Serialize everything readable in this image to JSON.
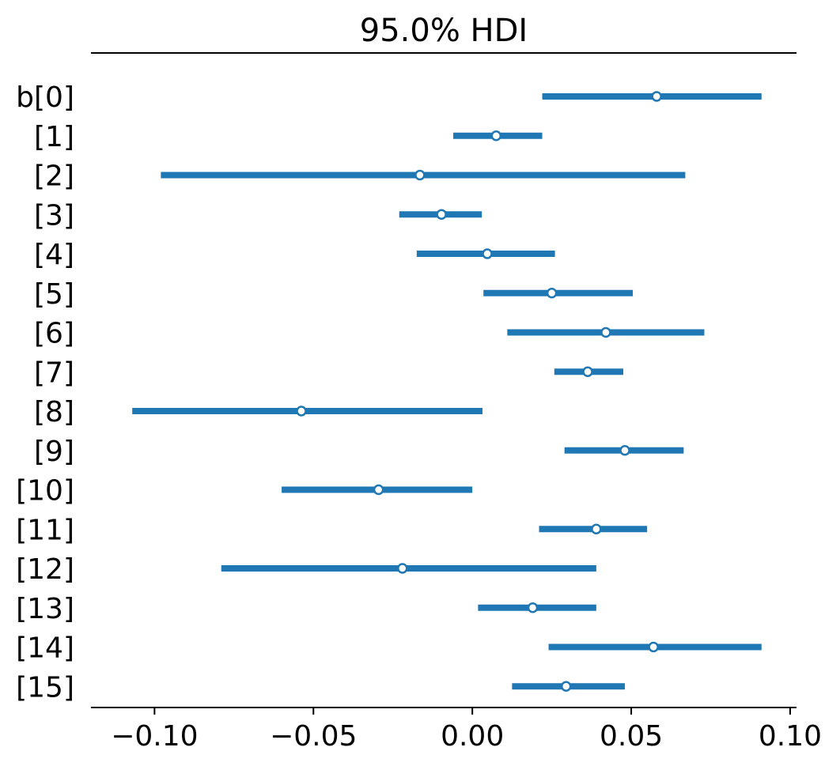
{
  "chart_data": {
    "type": "forest",
    "title": "95.0% HDI",
    "xlim": [
      -0.12,
      0.102
    ],
    "xticks": [
      -0.1,
      -0.05,
      0.0,
      0.05,
      0.1
    ],
    "xtick_labels": [
      "−0.10",
      "−0.05",
      "0.00",
      "0.05",
      "0.10"
    ],
    "series_color": "#1f77b4",
    "point_fill": "#ffffff",
    "grid": false,
    "rows": [
      {
        "label": "b[0]",
        "low": 0.022,
        "high": 0.091,
        "point": 0.058
      },
      {
        "label": "[1]",
        "low": -0.006,
        "high": 0.022,
        "point": 0.0075
      },
      {
        "label": "[2]",
        "low": -0.098,
        "high": 0.067,
        "point": -0.0165
      },
      {
        "label": "[3]",
        "low": -0.023,
        "high": 0.003,
        "point": -0.0097
      },
      {
        "label": "[4]",
        "low": -0.0175,
        "high": 0.026,
        "point": 0.0047
      },
      {
        "label": "[5]",
        "low": 0.0035,
        "high": 0.0505,
        "point": 0.025
      },
      {
        "label": "[6]",
        "low": 0.011,
        "high": 0.073,
        "point": 0.042
      },
      {
        "label": "[7]",
        "low": 0.0258,
        "high": 0.0475,
        "point": 0.0363
      },
      {
        "label": "[8]",
        "low": -0.107,
        "high": 0.0032,
        "point": -0.0538
      },
      {
        "label": "[9]",
        "low": 0.029,
        "high": 0.0665,
        "point": 0.048
      },
      {
        "label": "[10]",
        "low": -0.06,
        "high": 0.0,
        "point": -0.0295
      },
      {
        "label": "[11]",
        "low": 0.021,
        "high": 0.055,
        "point": 0.039
      },
      {
        "label": "[12]",
        "low": -0.079,
        "high": 0.039,
        "point": -0.022
      },
      {
        "label": "[13]",
        "low": 0.0018,
        "high": 0.039,
        "point": 0.019
      },
      {
        "label": "[14]",
        "low": 0.024,
        "high": 0.091,
        "point": 0.057
      },
      {
        "label": "[15]",
        "low": 0.0125,
        "high": 0.048,
        "point": 0.0295
      }
    ]
  }
}
